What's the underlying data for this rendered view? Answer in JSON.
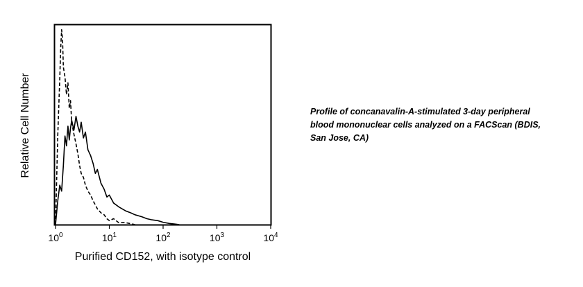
{
  "chart_data": {
    "type": "line",
    "xlabel": "Purified CD152, with isotype control",
    "ylabel": "Relative Cell Number",
    "x_scale": "log",
    "xlim": [
      1,
      10000
    ],
    "ylim": [
      0,
      1
    ],
    "grid": false,
    "x_ticks": [
      {
        "value": 1,
        "base": "10",
        "exp": "0"
      },
      {
        "value": 10,
        "base": "10",
        "exp": "1"
      },
      {
        "value": 100,
        "base": "10",
        "exp": "2"
      },
      {
        "value": 1000,
        "base": "10",
        "exp": "3"
      },
      {
        "value": 10000,
        "base": "10",
        "exp": "4"
      }
    ],
    "series": [
      {
        "style": "dashed",
        "x": [
          1.0,
          1.1,
          1.2,
          1.25,
          1.3,
          1.35,
          1.4,
          1.5,
          1.6,
          1.7,
          1.8,
          1.9,
          2.0,
          2.2,
          2.4,
          2.6,
          2.8,
          3.0,
          3.3,
          3.6,
          4.0,
          4.5,
          5.0,
          5.5,
          6.0,
          7.0,
          8.0,
          9.0,
          10.0,
          12.0,
          15.0,
          20.0,
          25.0,
          30.0
        ],
        "y": [
          0.0,
          0.45,
          0.74,
          0.9,
          0.99,
          0.94,
          0.8,
          0.75,
          0.66,
          0.72,
          0.59,
          0.63,
          0.52,
          0.46,
          0.41,
          0.36,
          0.3,
          0.26,
          0.24,
          0.2,
          0.17,
          0.15,
          0.12,
          0.1,
          0.08,
          0.06,
          0.05,
          0.03,
          0.02,
          0.03,
          0.01,
          0.01,
          0.005,
          0.0
        ]
      },
      {
        "style": "solid",
        "x": [
          1.0,
          1.1,
          1.2,
          1.3,
          1.4,
          1.5,
          1.6,
          1.7,
          1.8,
          1.9,
          2.0,
          2.2,
          2.4,
          2.6,
          2.8,
          3.0,
          3.3,
          3.6,
          4.0,
          4.5,
          5.0,
          5.5,
          6.0,
          7.0,
          8.0,
          9.0,
          10.0,
          12.0,
          15.0,
          20.0,
          25.0,
          30.0,
          40.0,
          50.0,
          60.0,
          80.0,
          100.0,
          130.0,
          160.0,
          200.0
        ],
        "y": [
          0.0,
          0.12,
          0.2,
          0.17,
          0.3,
          0.45,
          0.4,
          0.5,
          0.43,
          0.49,
          0.53,
          0.48,
          0.55,
          0.5,
          0.47,
          0.52,
          0.44,
          0.47,
          0.38,
          0.35,
          0.31,
          0.26,
          0.28,
          0.21,
          0.18,
          0.14,
          0.15,
          0.11,
          0.09,
          0.07,
          0.06,
          0.05,
          0.04,
          0.03,
          0.025,
          0.02,
          0.012,
          0.006,
          0.003,
          0.0
        ]
      }
    ]
  },
  "caption": {
    "line1": "Profile of concanavalin-A-stimulated 3-day peripheral",
    "line2": "blood mononuclear cells analyzed on a FACScan (BDIS,",
    "line3": "San Jose, CA)"
  }
}
